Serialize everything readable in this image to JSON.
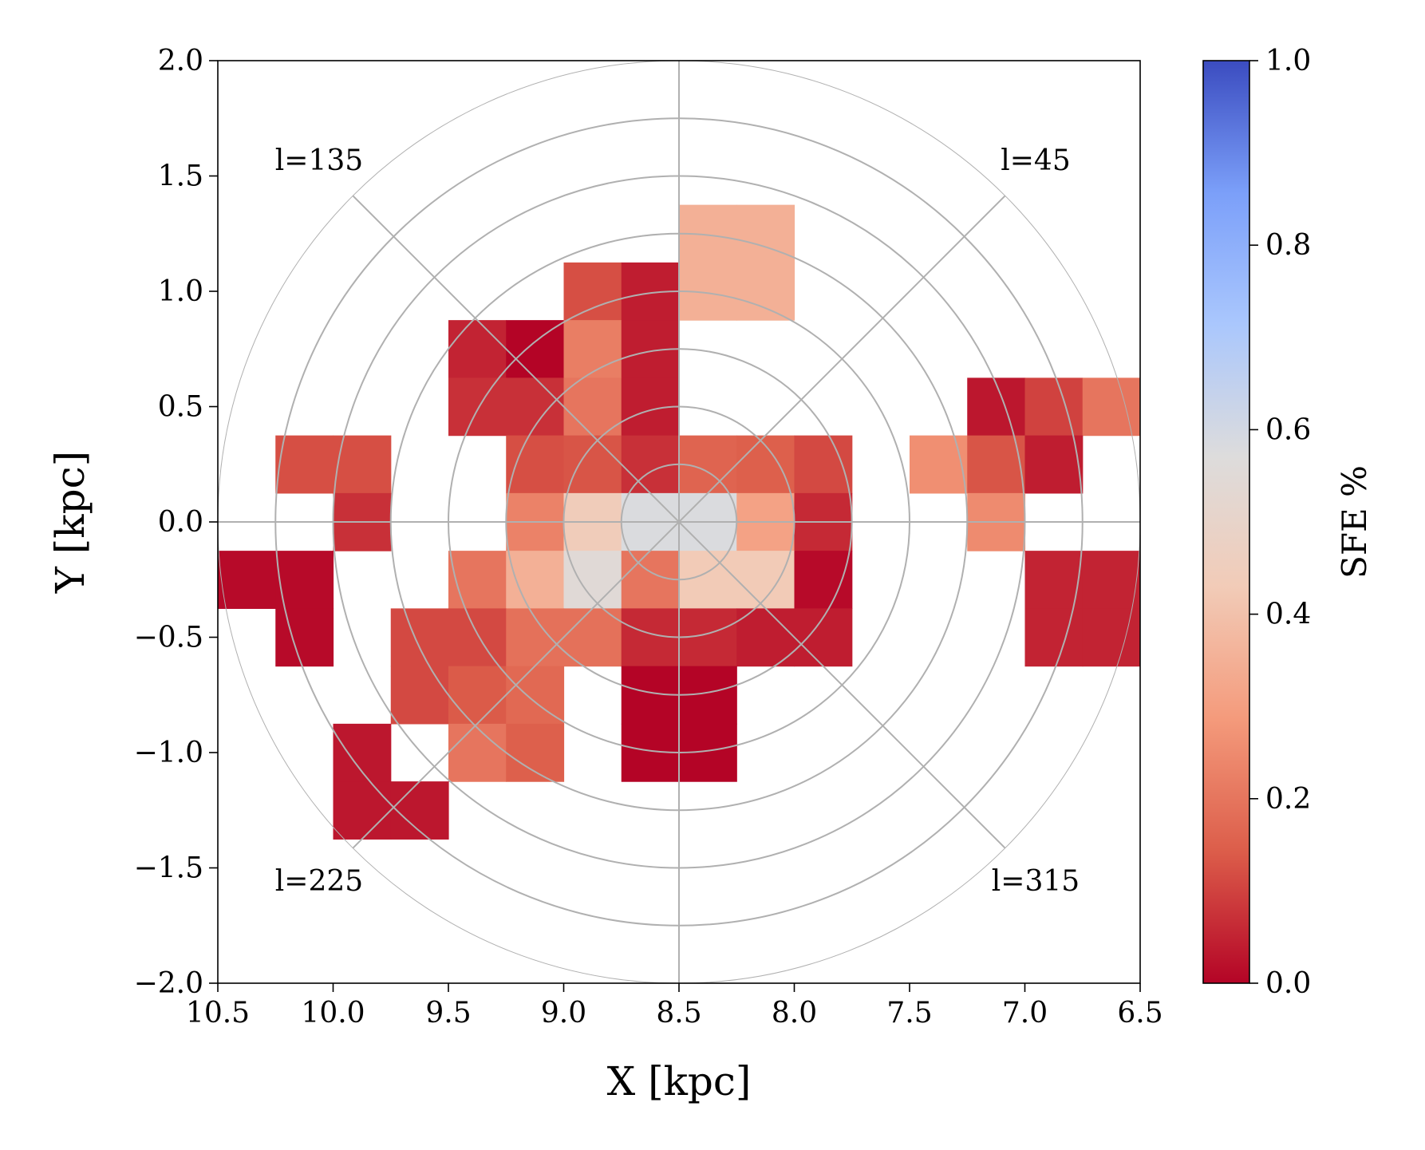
{
  "chart_data": {
    "type": "heatmap",
    "xlabel": "X [kpc]",
    "ylabel": "Y [kpc]",
    "xlim": [
      10.5,
      6.5
    ],
    "ylim": [
      -2.0,
      2.0
    ],
    "xticks": [
      "10.5",
      "10.0",
      "9.5",
      "9.0",
      "8.5",
      "8.0",
      "7.5",
      "7.0",
      "6.5"
    ],
    "yticks": [
      "−2.0",
      "−1.5",
      "−1.0",
      "−0.5",
      "0.0",
      "0.5",
      "1.0",
      "1.5",
      "2.0"
    ],
    "center_x": 8.5,
    "center_y": 0.0,
    "ring_step_kpc": 0.25,
    "ring_count": 8,
    "bin_size_kpc": 0.25,
    "longitude_labels": [
      "l=45",
      "l=135",
      "l=225",
      "l=315"
    ],
    "colorbar": {
      "label": "SFE %",
      "min": 0.0,
      "max": 1.0,
      "ticks": [
        "0.0",
        "0.2",
        "0.4",
        "0.6",
        "0.8",
        "1.0"
      ],
      "colormap": "coolwarm_r",
      "stops": [
        "#b40426",
        "#dc5d4a",
        "#f49a7b",
        "#f2cbb7",
        "#dddcdc",
        "#aac7fd",
        "#7b9ff9",
        "#3b4cc0"
      ]
    },
    "cells_note": "each cell = [x_center_kpc, y_center_kpc, sfe_fraction]",
    "cells": [
      [
        8.375,
        1.25,
        0.35
      ],
      [
        8.125,
        1.25,
        0.35
      ],
      [
        8.375,
        1.0,
        0.35
      ],
      [
        8.125,
        1.0,
        0.35
      ],
      [
        8.875,
        1.0,
        0.12
      ],
      [
        8.625,
        1.0,
        0.04
      ],
      [
        9.375,
        0.75,
        0.05
      ],
      [
        9.125,
        0.75,
        0.0
      ],
      [
        8.875,
        0.75,
        0.22
      ],
      [
        8.625,
        0.75,
        0.04
      ],
      [
        9.375,
        0.5,
        0.07
      ],
      [
        9.125,
        0.5,
        0.07
      ],
      [
        8.875,
        0.5,
        0.2
      ],
      [
        8.625,
        0.5,
        0.04
      ],
      [
        10.125,
        0.25,
        0.12
      ],
      [
        9.875,
        0.25,
        0.12
      ],
      [
        9.125,
        0.25,
        0.12
      ],
      [
        8.875,
        0.25,
        0.13
      ],
      [
        8.625,
        0.25,
        0.07
      ],
      [
        8.375,
        0.25,
        0.16
      ],
      [
        8.125,
        0.25,
        0.15
      ],
      [
        7.875,
        0.25,
        0.11
      ],
      [
        9.875,
        0.0,
        0.07
      ],
      [
        9.125,
        0.0,
        0.23
      ],
      [
        8.875,
        0.0,
        0.44
      ],
      [
        8.625,
        0.0,
        0.58
      ],
      [
        8.375,
        0.0,
        0.58
      ],
      [
        8.125,
        0.0,
        0.31
      ],
      [
        7.875,
        0.0,
        0.06
      ],
      [
        10.375,
        -0.25,
        0.01
      ],
      [
        10.125,
        -0.25,
        0.01
      ],
      [
        9.375,
        -0.25,
        0.2
      ],
      [
        9.125,
        -0.25,
        0.35
      ],
      [
        8.875,
        -0.25,
        0.55
      ],
      [
        8.625,
        -0.25,
        0.2
      ],
      [
        8.375,
        -0.25,
        0.43
      ],
      [
        8.125,
        -0.25,
        0.43
      ],
      [
        7.875,
        -0.25,
        0.01
      ],
      [
        10.125,
        -0.5,
        0.01
      ],
      [
        9.625,
        -0.5,
        0.11
      ],
      [
        9.375,
        -0.5,
        0.11
      ],
      [
        9.125,
        -0.5,
        0.19
      ],
      [
        8.875,
        -0.5,
        0.19
      ],
      [
        8.625,
        -0.5,
        0.06
      ],
      [
        8.375,
        -0.5,
        0.06
      ],
      [
        8.125,
        -0.5,
        0.04
      ],
      [
        7.875,
        -0.5,
        0.04
      ],
      [
        9.625,
        -0.75,
        0.11
      ],
      [
        9.375,
        -0.75,
        0.14
      ],
      [
        9.125,
        -0.75,
        0.17
      ],
      [
        8.625,
        -0.75,
        0.0
      ],
      [
        8.375,
        -0.75,
        0.0
      ],
      [
        9.875,
        -1.0,
        0.03
      ],
      [
        9.375,
        -1.0,
        0.2
      ],
      [
        9.125,
        -1.0,
        0.15
      ],
      [
        8.625,
        -1.0,
        0.0
      ],
      [
        8.375,
        -1.0,
        0.0
      ],
      [
        9.875,
        -1.25,
        0.03
      ],
      [
        9.625,
        -1.25,
        0.03
      ],
      [
        7.125,
        0.5,
        0.03
      ],
      [
        6.875,
        0.5,
        0.1
      ],
      [
        6.625,
        0.5,
        0.2
      ],
      [
        7.375,
        0.25,
        0.26
      ],
      [
        7.125,
        0.25,
        0.13
      ],
      [
        6.875,
        0.25,
        0.04
      ],
      [
        7.125,
        0.0,
        0.25
      ],
      [
        6.875,
        -0.25,
        0.05
      ],
      [
        6.625,
        -0.25,
        0.05
      ],
      [
        6.875,
        -0.5,
        0.05
      ],
      [
        6.625,
        -0.5,
        0.05
      ]
    ]
  }
}
